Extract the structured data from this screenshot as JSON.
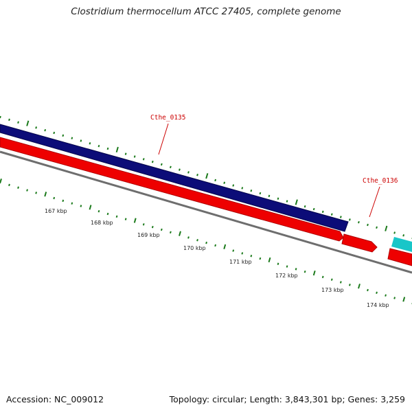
{
  "title": "Clostridium thermocellum ATCC 27405, complete genome",
  "footer": {
    "accession": "Accession: NC_009012",
    "topology": "Topology: circular; Length: 3,843,301 bp; Genes: 3,259"
  },
  "colors": {
    "forward_track": "#0c0c78",
    "reverse_track": "#ee0000",
    "reverse_track_dark": "#b00000",
    "cyan_feature": "#19c6c8",
    "backbone": "#6e6e6e",
    "ticks": "#1b7a1b",
    "label": "#cc0000"
  },
  "gene_labels": [
    {
      "text": "Cthe_0135"
    },
    {
      "text": "Cthe_0136"
    }
  ],
  "kbp_labels": [
    "167 kbp",
    "168 kbp",
    "169 kbp",
    "170 kbp",
    "171 kbp",
    "172 kbp",
    "173 kbp",
    "174 kbp"
  ]
}
